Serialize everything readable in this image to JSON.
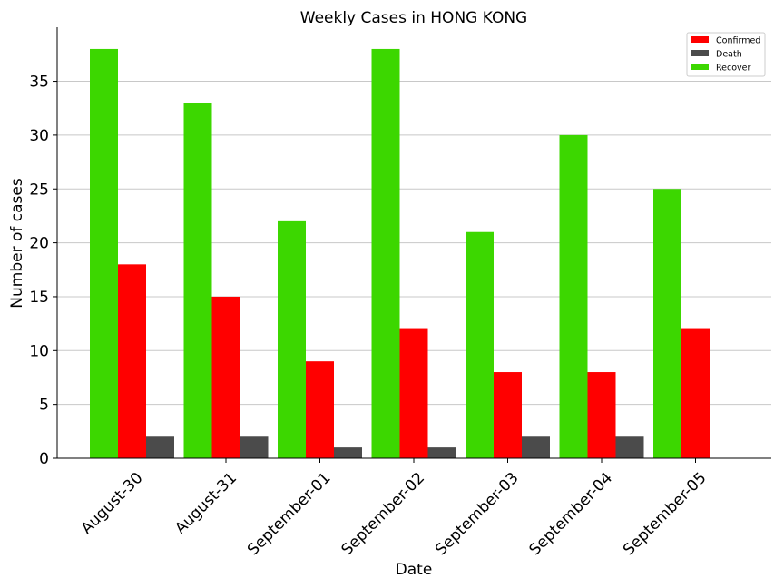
{
  "chart_data": {
    "type": "bar",
    "title": "Weekly Cases in HONG KONG",
    "xlabel": "Date",
    "ylabel": "Number of cases",
    "categories": [
      "August-30",
      "August-31",
      "September-01",
      "September-02",
      "September-03",
      "September-04",
      "September-05"
    ],
    "series": [
      {
        "name": "Recover",
        "color": "#3cd700",
        "values": [
          38,
          33,
          22,
          38,
          21,
          30,
          25
        ]
      },
      {
        "name": "Confirmed",
        "color": "#ff0000",
        "values": [
          18,
          15,
          9,
          12,
          8,
          8,
          12
        ]
      },
      {
        "name": "Death",
        "color": "#4b4b4b",
        "values": [
          2,
          2,
          1,
          1,
          2,
          2,
          0
        ]
      }
    ],
    "legend_order": [
      "Confirmed",
      "Death",
      "Recover"
    ],
    "ylim": [
      0,
      40
    ],
    "yticks": [
      0,
      5,
      10,
      15,
      20,
      25,
      30,
      35
    ],
    "grid": "horizontal",
    "legend_position": "top-right"
  }
}
